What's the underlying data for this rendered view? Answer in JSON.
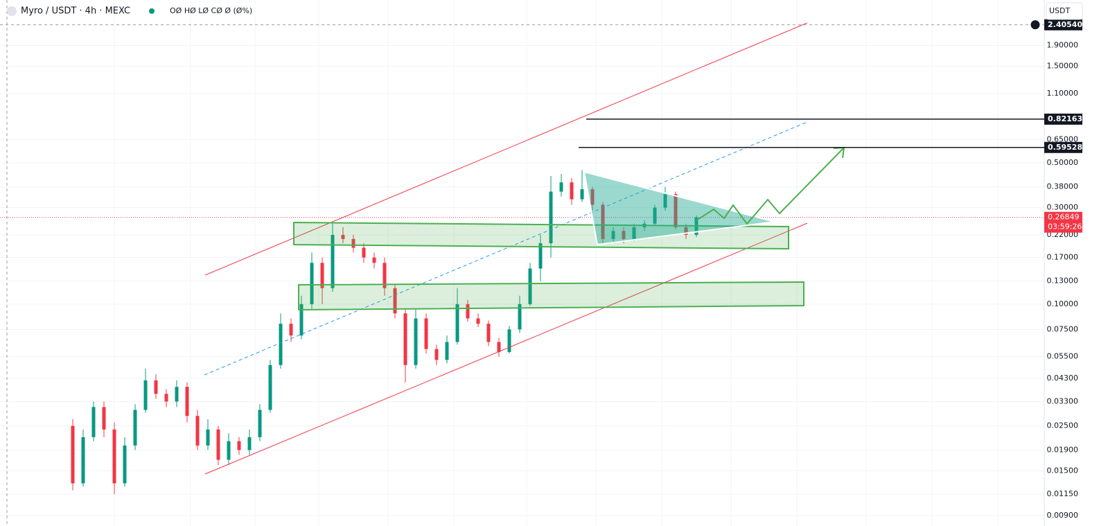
{
  "chart_data": {
    "type": "candlestick",
    "title": "Myro / USDT · 4h · MEXC",
    "legend_values": "OØ HØ LØ CØ Ø (Ø%)",
    "currency": "USDT",
    "log_scale": true,
    "grid": true,
    "up_color": "#089981",
    "down_color": "#f23645",
    "ylim": [
      0.008,
      3.19
    ],
    "yticks": [
      {
        "value": 1.9,
        "label": "1.90000"
      },
      {
        "value": 1.5,
        "label": "1.50000"
      },
      {
        "value": 1.1,
        "label": "1.10000"
      },
      {
        "value": 0.65,
        "label": "0.65000"
      },
      {
        "value": 0.5,
        "label": "0.50000"
      },
      {
        "value": 0.38,
        "label": "0.38000"
      },
      {
        "value": 0.3,
        "label": "0.30000"
      },
      {
        "value": 0.22,
        "label": "0.22000"
      },
      {
        "value": 0.17,
        "label": "0.17000"
      },
      {
        "value": 0.13,
        "label": "0.13000"
      },
      {
        "value": 0.1,
        "label": "0.10000"
      },
      {
        "value": 0.075,
        "label": "0.07500"
      },
      {
        "value": 0.055,
        "label": "0.05500"
      },
      {
        "value": 0.043,
        "label": "0.04300"
      },
      {
        "value": 0.033,
        "label": "0.03300"
      },
      {
        "value": 0.025,
        "label": "0.02500"
      },
      {
        "value": 0.019,
        "label": "0.01900"
      },
      {
        "value": 0.015,
        "label": "0.01500"
      },
      {
        "value": 0.0115,
        "label": "0.01150"
      },
      {
        "value": 0.009,
        "label": "0.00900"
      }
    ],
    "crosshair_price": {
      "value": 2.4054,
      "label": "2.40540"
    },
    "price_lines": [
      {
        "value": 0.82163,
        "label": "0.82163"
      },
      {
        "value": 0.59528,
        "label": "0.59528"
      }
    ],
    "current_price": {
      "value": 0.26849,
      "label": "0.26849",
      "countdown": "03:59:26"
    },
    "open": [
      0.025,
      0.013,
      0.022,
      0.031,
      0.024,
      0.013,
      0.02,
      0.03,
      0.042,
      0.036,
      0.033,
      0.039,
      0.028,
      0.02,
      0.024,
      0.017,
      0.021,
      0.019,
      0.022,
      0.03,
      0.05,
      0.08,
      0.07,
      0.1,
      0.16,
      0.12,
      0.22,
      0.21,
      0.19,
      0.17,
      0.16,
      0.12,
      0.09,
      0.05,
      0.085,
      0.06,
      0.053,
      0.065,
      0.1,
      0.085,
      0.08,
      0.065,
      0.058,
      0.075,
      0.1,
      0.15,
      0.2,
      0.36,
      0.4,
      0.33,
      0.37,
      0.31,
      0.21,
      0.23,
      0.21,
      0.24,
      0.25,
      0.3,
      0.35,
      0.24,
      0.22
    ],
    "high": [
      0.027,
      0.024,
      0.033,
      0.033,
      0.026,
      0.022,
      0.032,
      0.048,
      0.045,
      0.038,
      0.042,
      0.041,
      0.03,
      0.027,
      0.025,
      0.023,
      0.022,
      0.024,
      0.032,
      0.053,
      0.09,
      0.085,
      0.11,
      0.18,
      0.17,
      0.25,
      0.24,
      0.22,
      0.2,
      0.18,
      0.17,
      0.125,
      0.095,
      0.095,
      0.09,
      0.063,
      0.07,
      0.12,
      0.105,
      0.09,
      0.083,
      0.068,
      0.078,
      0.11,
      0.16,
      0.22,
      0.43,
      0.44,
      0.42,
      0.46,
      0.38,
      0.32,
      0.24,
      0.24,
      0.25,
      0.26,
      0.31,
      0.38,
      0.36,
      0.25,
      0.275
    ],
    "low": [
      0.012,
      0.0125,
      0.021,
      0.022,
      0.0115,
      0.0125,
      0.019,
      0.029,
      0.034,
      0.031,
      0.031,
      0.026,
      0.019,
      0.019,
      0.016,
      0.016,
      0.018,
      0.018,
      0.021,
      0.029,
      0.048,
      0.065,
      0.067,
      0.095,
      0.1,
      0.115,
      0.2,
      0.18,
      0.16,
      0.15,
      0.11,
      0.085,
      0.041,
      0.048,
      0.057,
      0.05,
      0.051,
      0.063,
      0.082,
      0.077,
      0.062,
      0.055,
      0.057,
      0.072,
      0.098,
      0.13,
      0.17,
      0.34,
      0.31,
      0.32,
      0.29,
      0.2,
      0.2,
      0.2,
      0.205,
      0.23,
      0.245,
      0.29,
      0.235,
      0.21,
      0.215
    ],
    "close": [
      0.013,
      0.022,
      0.031,
      0.024,
      0.013,
      0.02,
      0.03,
      0.042,
      0.036,
      0.033,
      0.039,
      0.028,
      0.02,
      0.024,
      0.017,
      0.021,
      0.019,
      0.022,
      0.03,
      0.05,
      0.08,
      0.07,
      0.1,
      0.16,
      0.12,
      0.22,
      0.21,
      0.19,
      0.17,
      0.16,
      0.12,
      0.09,
      0.05,
      0.085,
      0.06,
      0.053,
      0.065,
      0.1,
      0.085,
      0.08,
      0.065,
      0.058,
      0.075,
      0.1,
      0.15,
      0.2,
      0.36,
      0.4,
      0.33,
      0.37,
      0.31,
      0.21,
      0.23,
      0.21,
      0.24,
      0.25,
      0.3,
      0.35,
      0.24,
      0.22,
      0.26849
    ]
  }
}
